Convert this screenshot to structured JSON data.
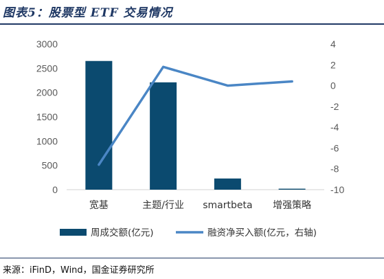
{
  "title": "图表5：股票型 ETF 交易情况",
  "source": "来源：iFinD，Wind，国金证券研究所",
  "colors": {
    "bar": "#0b4a6f",
    "line": "#4a86c5",
    "title": "#1f3864"
  },
  "chart_data": {
    "type": "bar",
    "categories": [
      "宽基",
      "主题/行业",
      "smartbeta",
      "增强策略"
    ],
    "series": [
      {
        "name": "周成交额(亿元)",
        "type": "bar",
        "axis": "left",
        "values": [
          2650,
          2210,
          230,
          20
        ]
      },
      {
        "name": "融资净买入额(亿元，右轴)",
        "type": "line",
        "axis": "right",
        "values": [
          -7.6,
          1.8,
          0.0,
          0.4
        ]
      }
    ],
    "yticks_left": [
      "0",
      "500",
      "1000",
      "1500",
      "2000",
      "2500",
      "3000"
    ],
    "yticks_right": [
      "-10",
      "-8",
      "-6",
      "-4",
      "-2",
      "0",
      "2",
      "4"
    ],
    "ylim_left": [
      0,
      3000
    ],
    "ylim_right": [
      -10,
      4
    ],
    "grid": false,
    "legend": "bottom"
  }
}
